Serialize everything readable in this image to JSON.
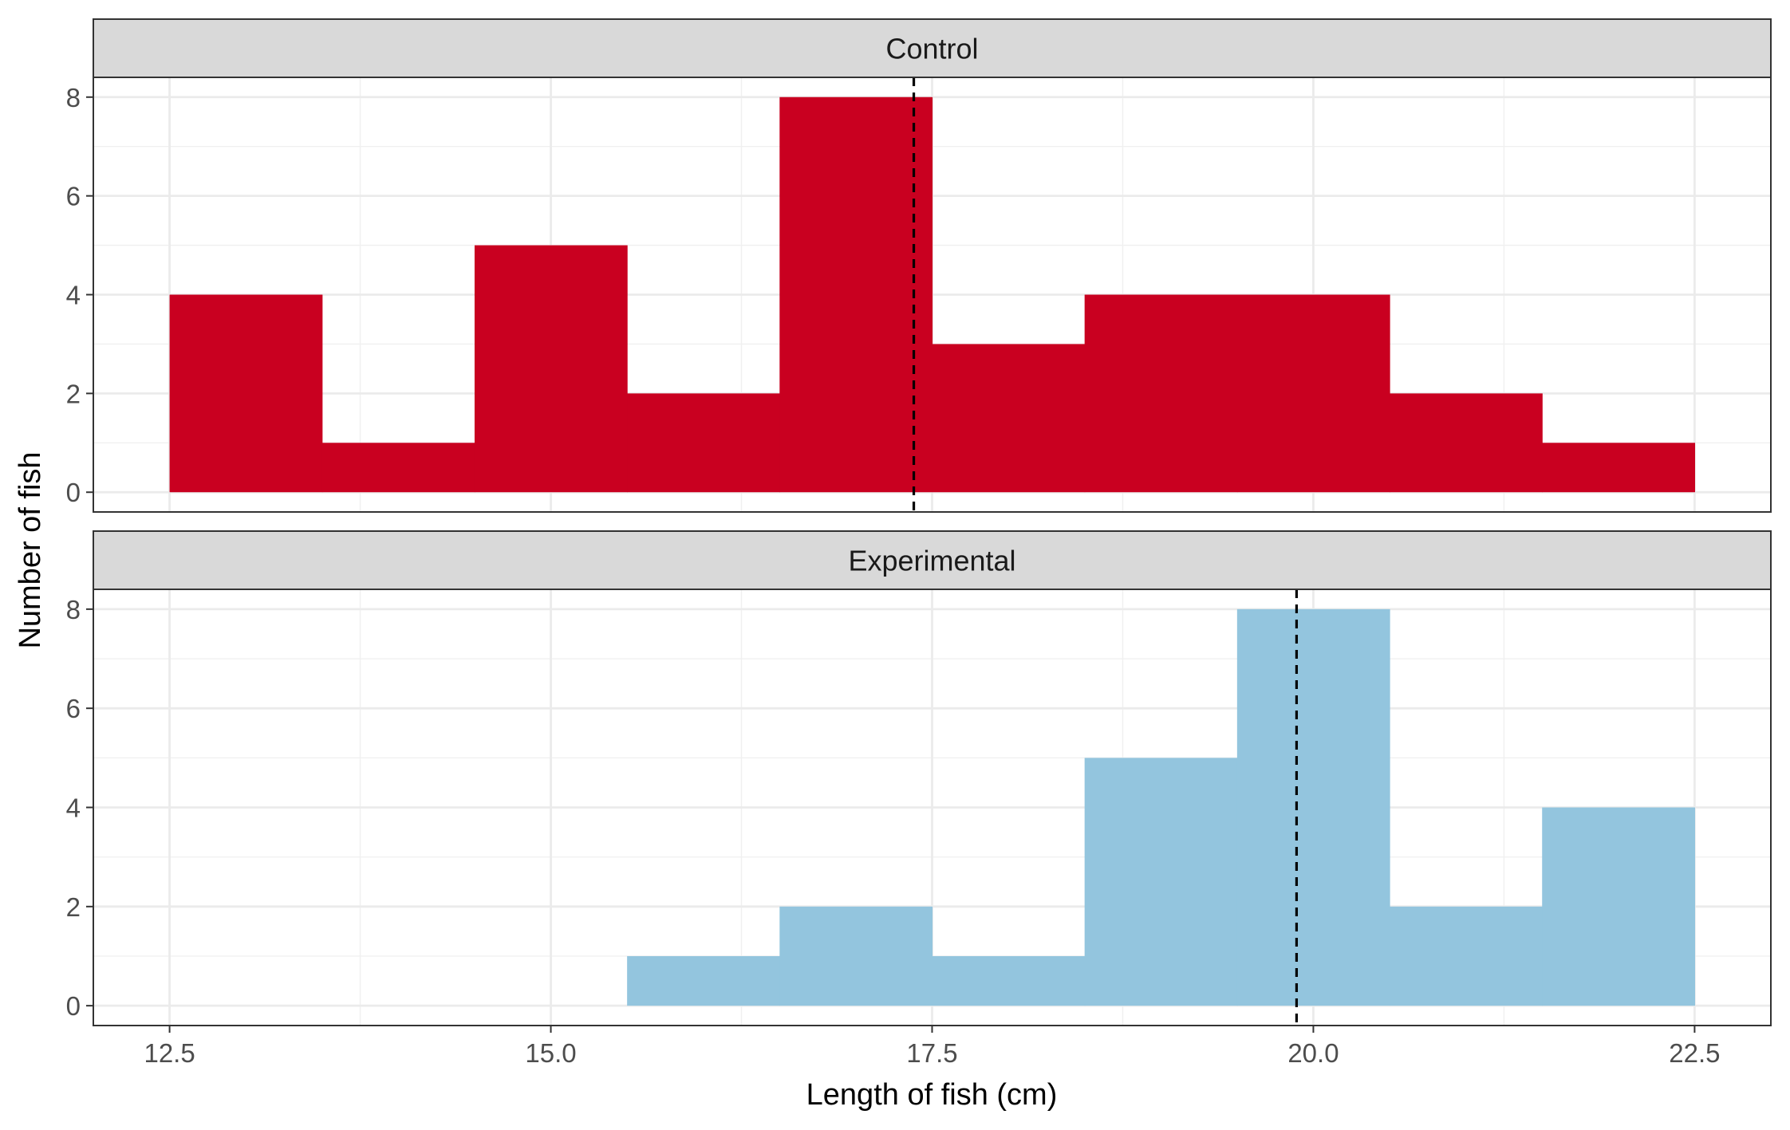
{
  "chart_data": {
    "type": "bar",
    "subtype": "faceted-histogram",
    "xlabel": "Length of fish (cm)",
    "ylabel": "Number of fish",
    "xlim": [
      12.0,
      23.0
    ],
    "ylim": [
      -0.4,
      8.4
    ],
    "x_ticks": [
      12.5,
      15.0,
      17.5,
      20.0,
      22.5
    ],
    "x_tick_labels": [
      "12.5",
      "15.0",
      "17.5",
      "20.0",
      "22.5"
    ],
    "y_ticks": [
      0,
      2,
      4,
      6,
      8
    ],
    "y_tick_labels": [
      "0",
      "2",
      "4",
      "6",
      "8"
    ],
    "grid": true,
    "bin_width": 1,
    "facets": [
      {
        "label": "Control",
        "color": "#C90020",
        "bins": [
          {
            "start": 12.5,
            "end": 13.5,
            "count": 4
          },
          {
            "start": 13.5,
            "end": 14.5,
            "count": 1
          },
          {
            "start": 14.5,
            "end": 15.5,
            "count": 5
          },
          {
            "start": 15.5,
            "end": 16.5,
            "count": 2
          },
          {
            "start": 16.5,
            "end": 17.5,
            "count": 8
          },
          {
            "start": 17.5,
            "end": 18.5,
            "count": 3
          },
          {
            "start": 18.5,
            "end": 19.5,
            "count": 4
          },
          {
            "start": 19.5,
            "end": 20.5,
            "count": 4
          },
          {
            "start": 20.5,
            "end": 21.5,
            "count": 2
          },
          {
            "start": 21.5,
            "end": 22.5,
            "count": 1
          }
        ],
        "mean": 17.38
      },
      {
        "label": "Experimental",
        "color": "#93C5DE",
        "bins": [
          {
            "start": 15.5,
            "end": 16.5,
            "count": 1
          },
          {
            "start": 16.5,
            "end": 17.5,
            "count": 2
          },
          {
            "start": 17.5,
            "end": 18.5,
            "count": 1
          },
          {
            "start": 18.5,
            "end": 19.5,
            "count": 5
          },
          {
            "start": 19.5,
            "end": 20.5,
            "count": 8
          },
          {
            "start": 20.5,
            "end": 21.5,
            "count": 2
          },
          {
            "start": 21.5,
            "end": 22.5,
            "count": 4
          }
        ],
        "mean": 19.89
      }
    ]
  }
}
